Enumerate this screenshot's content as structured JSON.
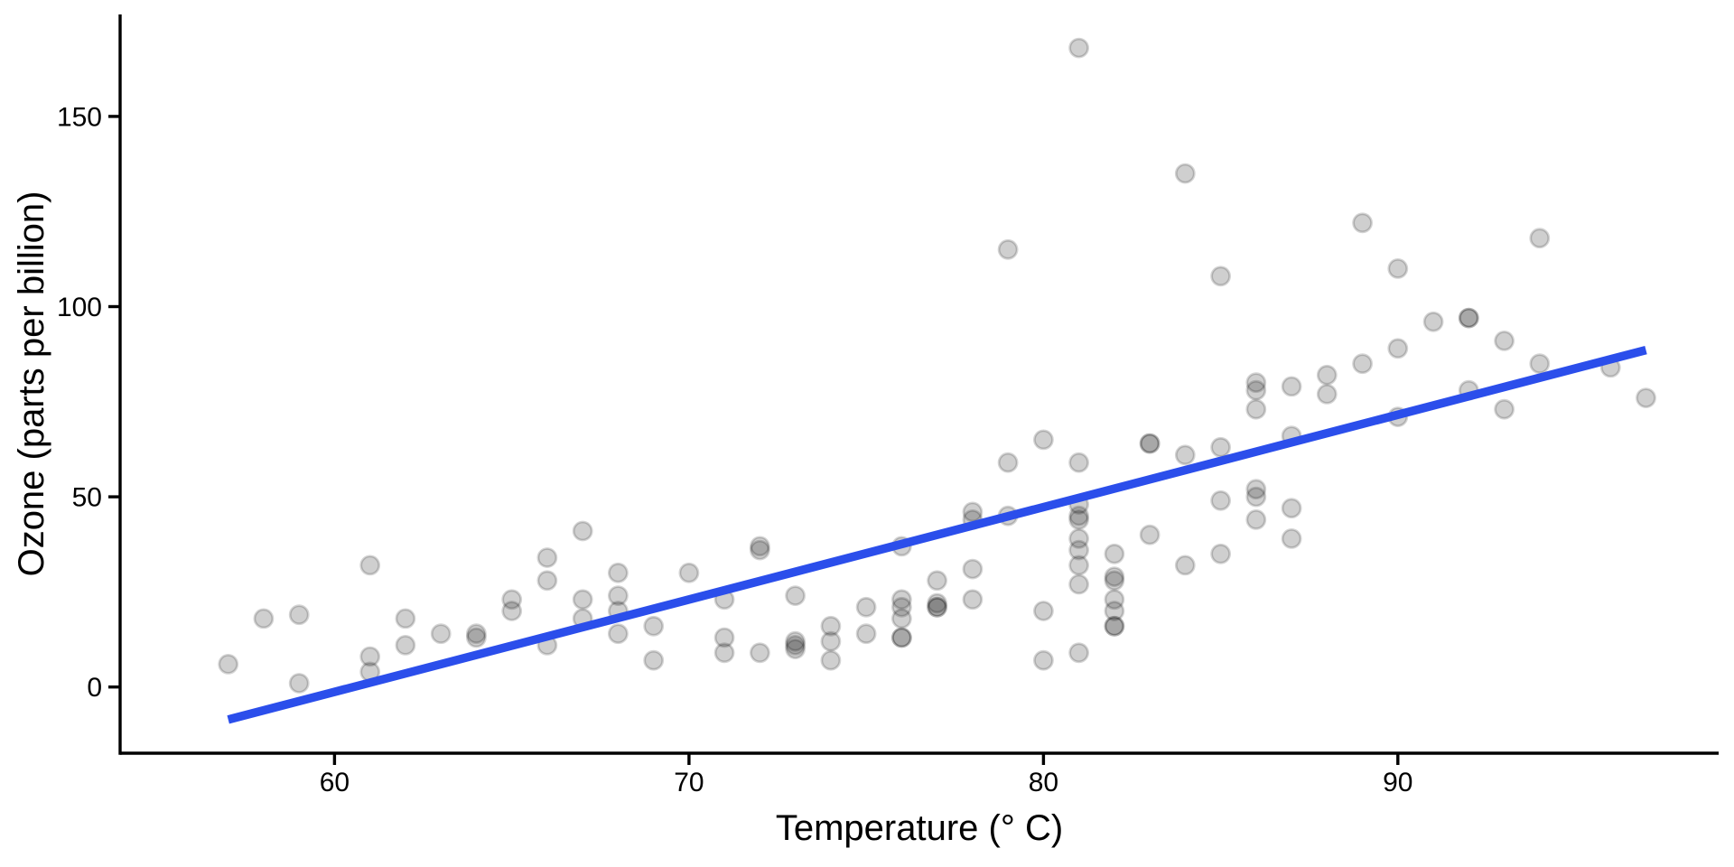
{
  "chart_data": {
    "type": "scatter",
    "title": "",
    "xlabel": "Temperature (° C)",
    "ylabel": "Ozone (parts per billion)",
    "x_ticks": [
      60,
      70,
      80,
      90
    ],
    "y_ticks": [
      0,
      50,
      100,
      150
    ],
    "x_domain": [
      53.95,
      99.05
    ],
    "y_domain": [
      -17.4,
      176.8
    ],
    "grid": false,
    "legend": false,
    "background_color": "#ffffff",
    "axis_color": "#000000",
    "point_style": {
      "radius": 10,
      "fill": "rgba(0,0,0,0.19)",
      "stroke": "rgba(0,0,0,0.17)",
      "stroke_width": 2.8
    },
    "trend_line": {
      "type": "linear-regression",
      "color": "#2B4EEB",
      "width": 9.5,
      "slope": 2.4287,
      "intercept": -146.995,
      "x_start": 57,
      "x_end": 97,
      "y_start": -8.56,
      "y_end": 88.59
    },
    "points": [
      [
        67,
        41
      ],
      [
        72,
        36
      ],
      [
        74,
        12
      ],
      [
        62,
        18
      ],
      [
        66,
        28
      ],
      [
        65,
        23
      ],
      [
        59,
        19
      ],
      [
        61,
        8
      ],
      [
        74,
        7
      ],
      [
        69,
        16
      ],
      [
        66,
        11
      ],
      [
        68,
        14
      ],
      [
        58,
        18
      ],
      [
        64,
        14
      ],
      [
        66,
        34
      ],
      [
        57,
        6
      ],
      [
        68,
        30
      ],
      [
        62,
        11
      ],
      [
        59,
        1
      ],
      [
        73,
        11
      ],
      [
        61,
        4
      ],
      [
        61,
        32
      ],
      [
        67,
        23
      ],
      [
        81,
        45
      ],
      [
        79,
        115
      ],
      [
        76,
        37
      ],
      [
        82,
        29
      ],
      [
        90,
        71
      ],
      [
        87,
        39
      ],
      [
        82,
        23
      ],
      [
        77,
        21
      ],
      [
        72,
        37
      ],
      [
        65,
        20
      ],
      [
        73,
        12
      ],
      [
        76,
        13
      ],
      [
        84,
        135
      ],
      [
        85,
        49
      ],
      [
        81,
        32
      ],
      [
        83,
        64
      ],
      [
        83,
        40
      ],
      [
        88,
        77
      ],
      [
        92,
        97
      ],
      [
        92,
        97
      ],
      [
        89,
        85
      ],
      [
        73,
        10
      ],
      [
        81,
        27
      ],
      [
        80,
        7
      ],
      [
        81,
        48
      ],
      [
        82,
        35
      ],
      [
        84,
        61
      ],
      [
        87,
        79
      ],
      [
        85,
        63
      ],
      [
        74,
        16
      ],
      [
        86,
        80
      ],
      [
        85,
        108
      ],
      [
        82,
        20
      ],
      [
        86,
        52
      ],
      [
        88,
        82
      ],
      [
        86,
        50
      ],
      [
        83,
        64
      ],
      [
        81,
        59
      ],
      [
        81,
        39
      ],
      [
        81,
        9
      ],
      [
        82,
        16
      ],
      [
        86,
        78
      ],
      [
        85,
        35
      ],
      [
        87,
        66
      ],
      [
        89,
        122
      ],
      [
        90,
        89
      ],
      [
        90,
        110
      ],
      [
        86,
        44
      ],
      [
        82,
        28
      ],
      [
        80,
        65
      ],
      [
        77,
        22
      ],
      [
        79,
        59
      ],
      [
        76,
        23
      ],
      [
        78,
        31
      ],
      [
        78,
        44
      ],
      [
        77,
        21
      ],
      [
        72,
        9
      ],
      [
        79,
        45
      ],
      [
        81,
        168
      ],
      [
        86,
        73
      ],
      [
        97,
        76
      ],
      [
        94,
        118
      ],
      [
        96,
        84
      ],
      [
        94,
        85
      ],
      [
        91,
        96
      ],
      [
        92,
        78
      ],
      [
        93,
        73
      ],
      [
        93,
        91
      ],
      [
        87,
        47
      ],
      [
        84,
        32
      ],
      [
        80,
        20
      ],
      [
        78,
        23
      ],
      [
        75,
        21
      ],
      [
        73,
        24
      ],
      [
        81,
        44
      ],
      [
        76,
        21
      ],
      [
        77,
        28
      ],
      [
        71,
        9
      ],
      [
        71,
        13
      ],
      [
        78,
        46
      ],
      [
        67,
        18
      ],
      [
        76,
        13
      ],
      [
        68,
        24
      ],
      [
        82,
        16
      ],
      [
        64,
        13
      ],
      [
        71,
        23
      ],
      [
        81,
        36
      ],
      [
        69,
        7
      ],
      [
        63,
        14
      ],
      [
        70,
        30
      ],
      [
        75,
        14
      ],
      [
        76,
        18
      ],
      [
        68,
        20
      ]
    ]
  }
}
